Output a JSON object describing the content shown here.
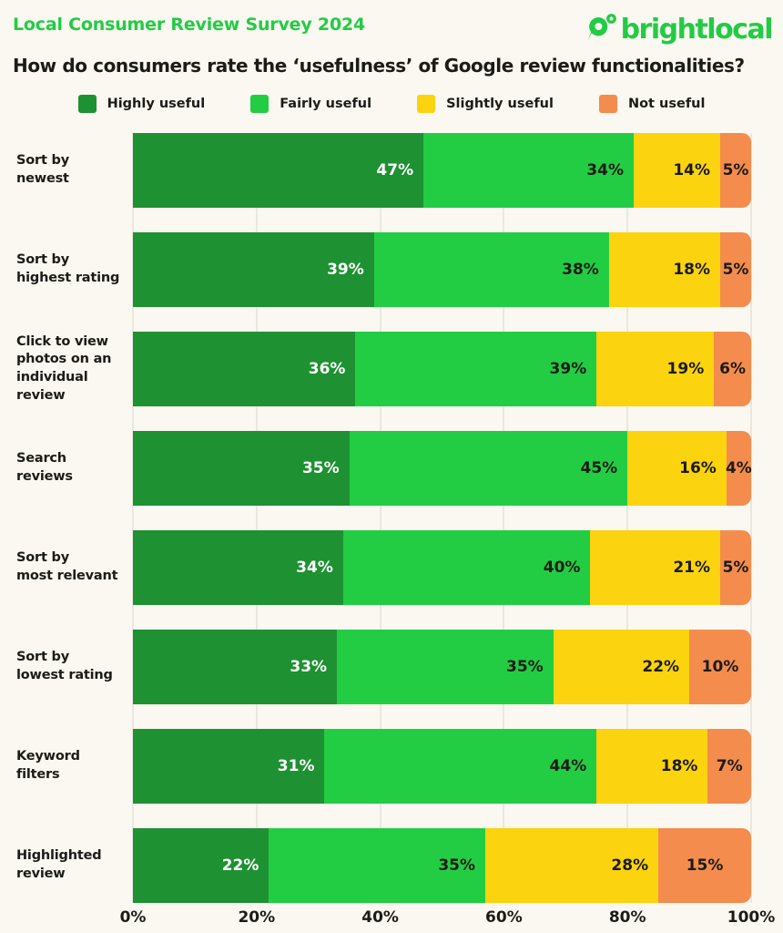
{
  "header": {
    "survey_title": "Local Consumer Review Survey 2024",
    "logo_text": "brightlocal",
    "question": "How do consumers rate the ‘usefulness’ of Google review functionalities?"
  },
  "colors": {
    "accent_green": "#23CB45",
    "background": "#FAF8F0",
    "gridline": "#EAE7DF",
    "text_dark": "#1C1B17"
  },
  "chart_data": {
    "type": "bar",
    "orientation": "horizontal-stacked",
    "title": "How do consumers rate the ‘usefulness’ of Google review functionalities?",
    "categories": [
      "Sort by newest",
      "Sort by\nhighest rating",
      "Click to view\nphotos on an\nindividual\nreview",
      "Search reviews",
      "Sort by\nmost relevant",
      "Sort by\nlowest rating",
      "Keyword filters",
      "Highlighted\nreview"
    ],
    "series": [
      {
        "name": "Highly useful",
        "color": "#1E9132",
        "label_color": "#FFFFFF",
        "values": [
          47,
          39,
          36,
          35,
          34,
          33,
          31,
          22
        ]
      },
      {
        "name": "Fairly useful",
        "color": "#22CD44",
        "label_color": "#1C1B17",
        "values": [
          34,
          38,
          39,
          45,
          40,
          35,
          44,
          35
        ]
      },
      {
        "name": "Slightly useful",
        "color": "#FBD30E",
        "label_color": "#1C1B17",
        "values": [
          14,
          18,
          19,
          16,
          21,
          22,
          18,
          28
        ]
      },
      {
        "name": "Not useful",
        "color": "#F48C4D",
        "label_color": "#1C1B17",
        "values": [
          5,
          5,
          6,
          4,
          5,
          10,
          7,
          15
        ]
      }
    ],
    "value_suffix": "%",
    "x_ticks": [
      "0%",
      "20%",
      "40%",
      "60%",
      "80%",
      "100%"
    ],
    "xlim": [
      0,
      100
    ],
    "grid": true,
    "legend_position": "top"
  }
}
